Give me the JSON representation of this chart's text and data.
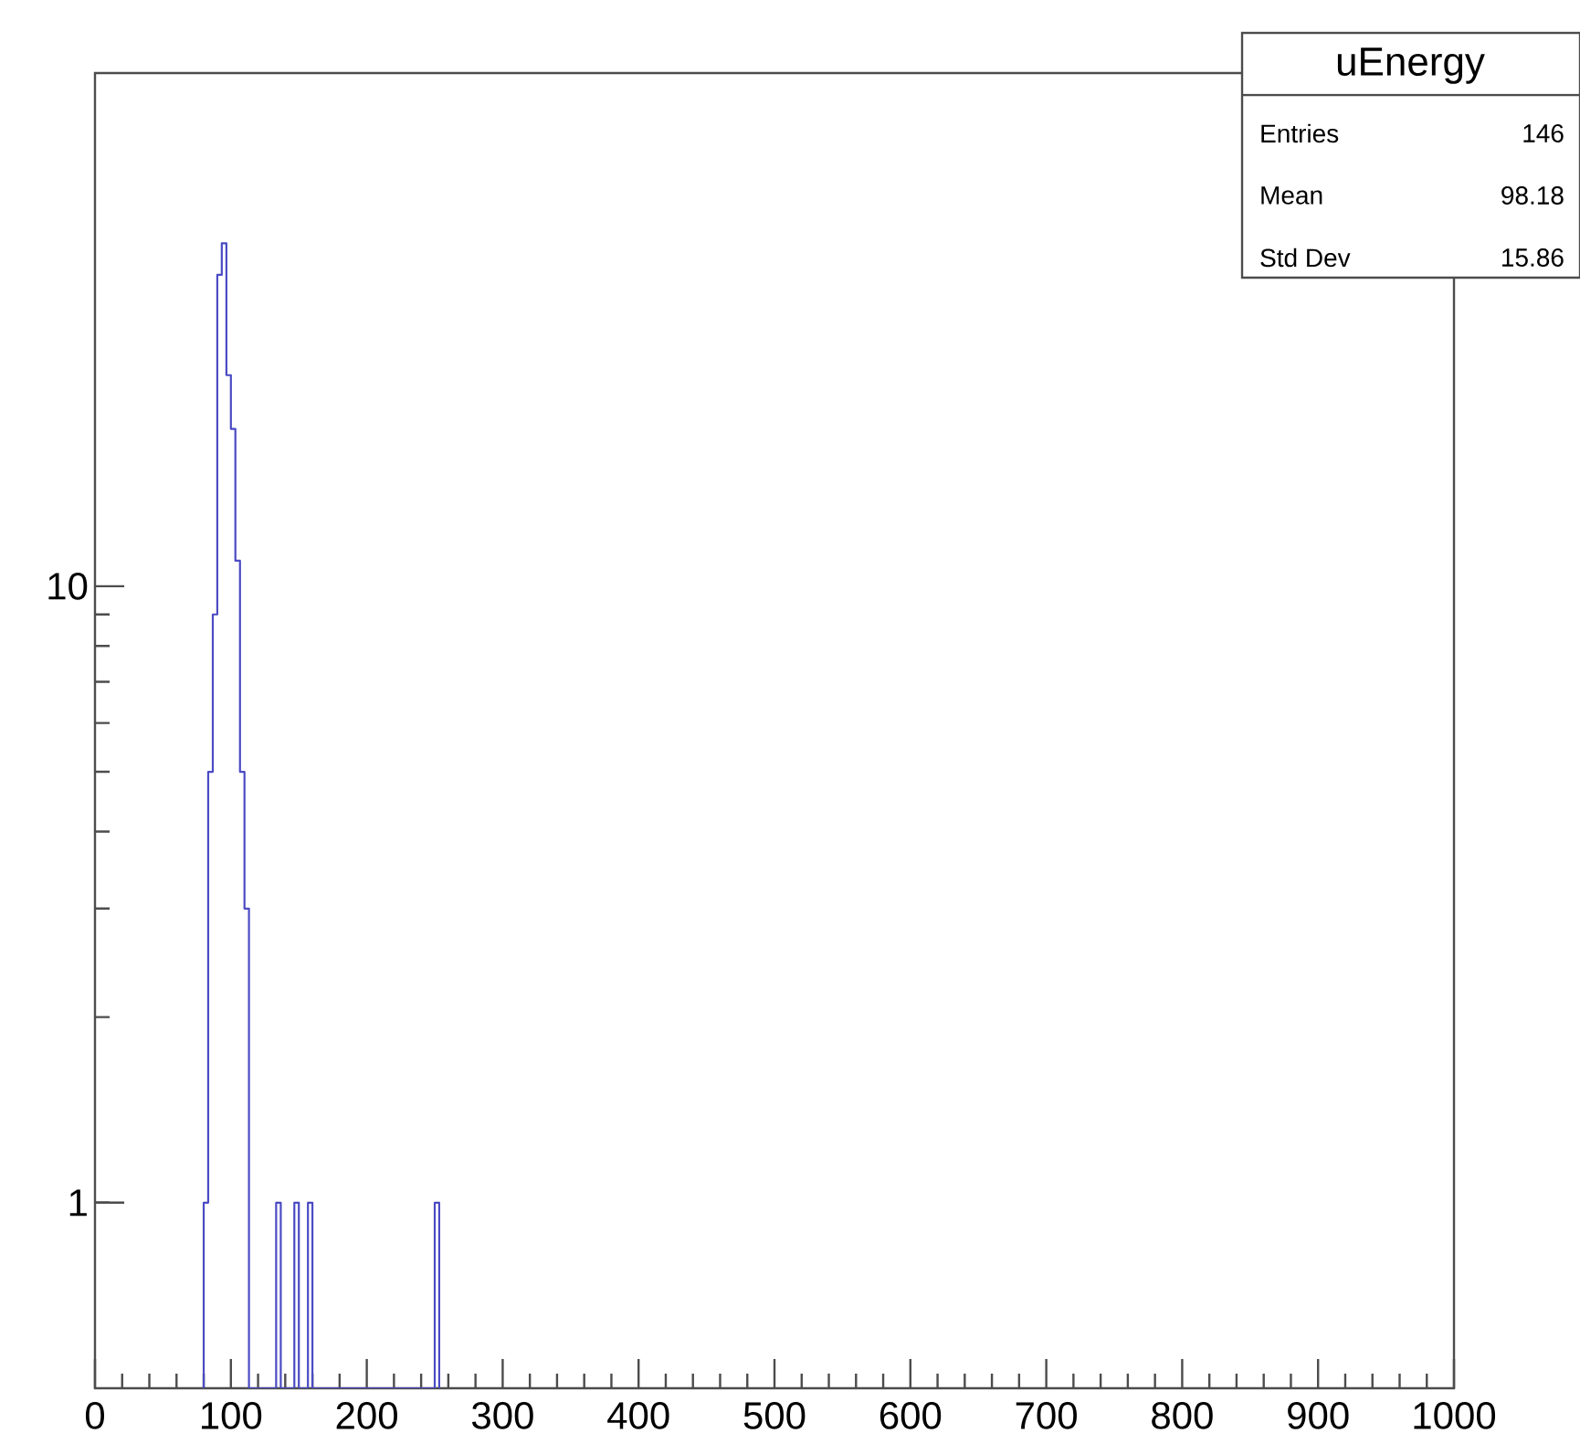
{
  "chart_data": {
    "type": "histogram",
    "bins": [
      80,
      83.3,
      86.7,
      90,
      93.3,
      96.7,
      100,
      103.3,
      106.7,
      110,
      113.3,
      116.7,
      120,
      123.3,
      126.7,
      130,
      133.3,
      136.7,
      140,
      143.3,
      146.7,
      150,
      153.3,
      156.7,
      160,
      163.3,
      166.7,
      170,
      173.3,
      176.7,
      180,
      183.3,
      186.7,
      190,
      193.3,
      196.7,
      200,
      203.3,
      206.7,
      210,
      213.3,
      216.7,
      220,
      223.3,
      226.7,
      230,
      233.3,
      236.7,
      240,
      243.3,
      246.7,
      250,
      253.3
    ],
    "values": [
      1,
      5,
      9,
      32,
      36,
      22,
      18,
      11,
      5,
      3,
      null,
      null,
      null,
      null,
      null,
      null,
      1,
      null,
      null,
      null,
      1,
      null,
      null,
      1,
      null,
      null,
      null,
      null,
      null,
      null,
      null,
      null,
      null,
      null,
      null,
      null,
      null,
      null,
      null,
      null,
      null,
      null,
      null,
      null,
      null,
      null,
      null,
      null,
      null,
      null,
      null,
      1
    ],
    "color": "#4b4bc4",
    "log": "y",
    "xlim": [
      0,
      1000
    ],
    "xticks": [
      0,
      100,
      200,
      300,
      400,
      500,
      600,
      700,
      800,
      900,
      1000
    ],
    "ylim": [
      0.5,
      68
    ],
    "yticks": [
      1,
      10
    ],
    "annotations": [
      "uEnergy",
      "Entries",
      "146",
      "Mean",
      "98.18",
      "Std Dev",
      "15.86"
    ]
  }
}
